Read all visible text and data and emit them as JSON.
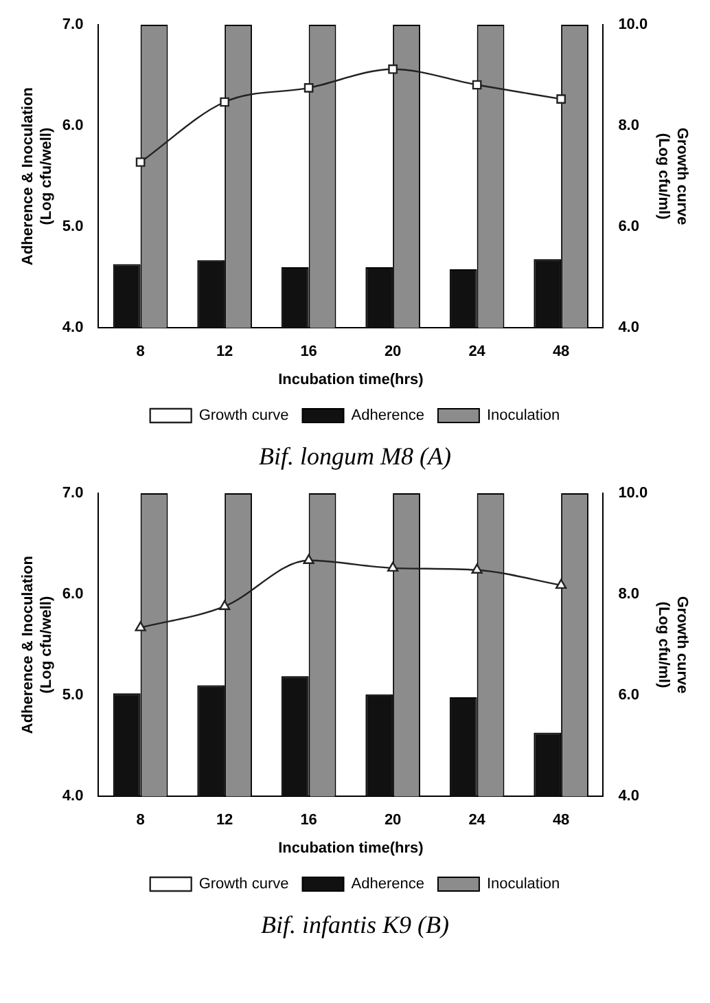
{
  "chart_data": [
    {
      "type": "bar",
      "title": "Bif. longum M8 (A)",
      "xlabel": "Incubation time(hrs)",
      "ylabel": "Adherence & Inoculation\n(Log cfu/well)",
      "y2label": "Growth curve\n(Log cfu/ml)",
      "categories": [
        "8",
        "12",
        "16",
        "20",
        "24",
        "48"
      ],
      "series": [
        {
          "name": "Adherence",
          "color": "#111111",
          "values": [
            4.63,
            4.67,
            4.6,
            4.6,
            4.58,
            4.68
          ]
        },
        {
          "name": "Inoculation",
          "color": "#8c8c8c",
          "values": [
            7.0,
            7.0,
            7.0,
            7.0,
            7.0,
            7.0
          ]
        },
        {
          "name": "Growth curve",
          "type": "line",
          "axis": "y2",
          "color": "#222222",
          "values": [
            7.28,
            8.47,
            8.75,
            9.12,
            8.81,
            8.53
          ]
        }
      ],
      "ylim": [
        4,
        7
      ],
      "yticks": [
        {
          "value": 4,
          "label": "4.0"
        },
        {
          "value": 5,
          "label": "5.0"
        },
        {
          "value": 6,
          "label": "6.0"
        },
        {
          "value": 7,
          "label": "7.0"
        }
      ],
      "y2lim": [
        4,
        10
      ],
      "y2ticks": [
        {
          "value": 4,
          "label": "4.0"
        },
        {
          "value": 6,
          "label": "6.0"
        },
        {
          "value": 8,
          "label": "8.0"
        },
        {
          "value": 10,
          "label": "10.0"
        }
      ],
      "legend": "bottom",
      "marker": "square"
    },
    {
      "type": "bar",
      "title": "Bif. infantis K9 (B)",
      "xlabel": "Incubation time(hrs)",
      "ylabel": "Adherence & Inoculation\n(Log cfu/well)",
      "y2label": "Growth curve\n(Log cfu/ml)",
      "categories": [
        "8",
        "12",
        "16",
        "20",
        "24",
        "48"
      ],
      "series": [
        {
          "name": "Adherence",
          "color": "#111111",
          "values": [
            5.02,
            5.1,
            5.19,
            5.01,
            4.98,
            4.63
          ]
        },
        {
          "name": "Inoculation",
          "color": "#8c8c8c",
          "values": [
            7.0,
            7.0,
            7.0,
            7.0,
            7.0,
            7.0
          ]
        },
        {
          "name": "Growth curve",
          "type": "line",
          "axis": "y2",
          "color": "#222222",
          "values": [
            7.34,
            7.76,
            8.67,
            8.52,
            8.48,
            8.18
          ]
        }
      ],
      "ylim": [
        4,
        7
      ],
      "yticks": [
        {
          "value": 4,
          "label": "4.0"
        },
        {
          "value": 5,
          "label": "5.0"
        },
        {
          "value": 6,
          "label": "6.0"
        },
        {
          "value": 7,
          "label": "7.0"
        }
      ],
      "y2lim": [
        4,
        10
      ],
      "y2ticks": [
        {
          "value": 4,
          "label": "4.0"
        },
        {
          "value": 6,
          "label": "6.0"
        },
        {
          "value": 8,
          "label": "8.0"
        },
        {
          "value": 10,
          "label": "10.0"
        }
      ],
      "legend": "bottom",
      "marker": "triangle"
    }
  ]
}
